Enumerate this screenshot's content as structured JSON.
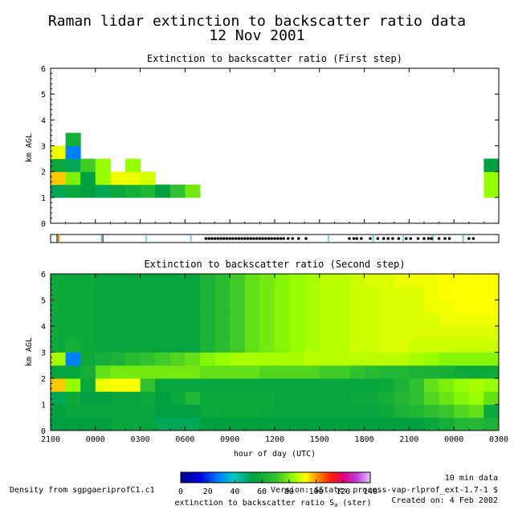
{
  "figure": {
    "title": "Raman lidar extinction to backscatter ratio data",
    "date": "12 Nov 2001",
    "footer_left": "Density from sgpgaeriprofC1.c1",
    "footer_resolution": "10 min data",
    "footer_version": "Version: $State: process-vap-rlprof_ext-1.7-1 $",
    "footer_created": "Created on:  4 Feb 2002",
    "colorbar": {
      "label": "extinction to backscatter ratio S",
      "label_sub": "a",
      "label_suffix": " (ster)",
      "ticks": [
        "0",
        "20",
        "40",
        "60",
        "80",
        "100",
        "120",
        "140"
      ],
      "range": [
        0,
        140
      ]
    },
    "colors": {
      "frame": "#000000",
      "strip_mark": "#00b4b4",
      "strip_warn": "#ff8c00"
    }
  },
  "chart_data": [
    {
      "type": "heatmap",
      "title": "Extinction to backscatter ratio (First step)",
      "ylabel": "km AGL",
      "xlabel": "",
      "x_range": [
        0,
        30
      ],
      "y_range": [
        0,
        6
      ],
      "yticks": [
        "0",
        "1",
        "2",
        "3",
        "4",
        "5",
        "6"
      ],
      "cell_width_hours": 1,
      "cell_height_km": 0.5,
      "cells": [
        {
          "x": 0,
          "y": 1.0,
          "v": 50
        },
        {
          "x": 0,
          "y": 1.5,
          "v": 95
        },
        {
          "x": 0,
          "y": 2.0,
          "v": 55
        },
        {
          "x": 0,
          "y": 2.5,
          "v": 88
        },
        {
          "x": 1,
          "y": 1.0,
          "v": 55
        },
        {
          "x": 1,
          "y": 1.5,
          "v": 75
        },
        {
          "x": 1,
          "y": 2.0,
          "v": 50
        },
        {
          "x": 1,
          "y": 2.5,
          "v": 28
        },
        {
          "x": 1,
          "y": 3.0,
          "v": 58
        },
        {
          "x": 2,
          "y": 1.0,
          "v": 52
        },
        {
          "x": 2,
          "y": 1.5,
          "v": 52
        },
        {
          "x": 2,
          "y": 2.0,
          "v": 68
        },
        {
          "x": 3,
          "y": 1.0,
          "v": 50
        },
        {
          "x": 3,
          "y": 1.5,
          "v": 78
        },
        {
          "x": 3,
          "y": 2.0,
          "v": 78
        },
        {
          "x": 4,
          "y": 1.0,
          "v": 55
        },
        {
          "x": 4,
          "y": 1.5,
          "v": 88
        },
        {
          "x": 5,
          "y": 1.0,
          "v": 58
        },
        {
          "x": 5,
          "y": 1.5,
          "v": 88
        },
        {
          "x": 5,
          "y": 2.0,
          "v": 78
        },
        {
          "x": 6,
          "y": 1.0,
          "v": 62
        },
        {
          "x": 6,
          "y": 1.5,
          "v": 85
        },
        {
          "x": 7,
          "y": 1.0,
          "v": 52
        },
        {
          "x": 8,
          "y": 1.0,
          "v": 66
        },
        {
          "x": 9,
          "y": 1.0,
          "v": 74
        },
        {
          "x": 29,
          "y": 1.0,
          "v": 78
        },
        {
          "x": 29,
          "y": 1.5,
          "v": 78
        },
        {
          "x": 29,
          "y": 2.0,
          "v": 52
        }
      ],
      "status_strip": {
        "ticks": [
          0.5,
          3.4,
          6.4,
          9.4,
          18.6,
          21.6,
          23.6,
          25.6,
          27.6
        ],
        "warn_marks": [
          0.55
        ],
        "dots": [
          10.4,
          10.6,
          10.8,
          11.0,
          11.2,
          11.4,
          11.6,
          11.8,
          12.0,
          12.2,
          12.4,
          12.6,
          12.8,
          13.0,
          13.2,
          13.4,
          13.6,
          13.8,
          14.0,
          14.2,
          14.4,
          14.6,
          14.8,
          15.0,
          15.2,
          15.4,
          15.6,
          15.9,
          16.2,
          16.6,
          17.1,
          20.0,
          20.3,
          20.5,
          20.8,
          21.4,
          21.9,
          22.3,
          22.6,
          22.9,
          23.3,
          23.8,
          24.1,
          24.6,
          25.0,
          25.3,
          25.5,
          26.0,
          26.4,
          26.7,
          28.0,
          28.3
        ]
      }
    },
    {
      "type": "heatmap",
      "title": "Extinction to backscatter ratio (Second step)",
      "ylabel": "km AGL",
      "xlabel": "hour of day (UTC)",
      "x_range": [
        0,
        30
      ],
      "y_range": [
        0,
        6
      ],
      "xticks": [
        "2100",
        "0000",
        "0300",
        "0600",
        "0900",
        "1200",
        "1500",
        "1800",
        "2100",
        "0000",
        "0300"
      ],
      "yticks": [
        "0",
        "1",
        "2",
        "3",
        "4",
        "5",
        "6"
      ],
      "columns_hours": 30,
      "row_height_km": 0.5,
      "rows": [
        {
          "y": 0.0,
          "values": [
            52,
            52,
            52,
            52,
            54,
            54,
            54,
            50,
            50,
            50,
            52,
            52,
            52,
            52,
            52,
            52,
            52,
            52,
            52,
            52,
            52,
            52,
            52,
            52,
            52,
            55,
            58,
            62,
            62,
            60
          ]
        },
        {
          "y": 0.5,
          "values": [
            53,
            54,
            54,
            54,
            54,
            54,
            54,
            52,
            52,
            52,
            55,
            56,
            56,
            56,
            55,
            54,
            54,
            54,
            54,
            54,
            54,
            54,
            56,
            60,
            62,
            65,
            67,
            70,
            72,
            55
          ]
        },
        {
          "y": 1.0,
          "values": [
            50,
            56,
            52,
            52,
            54,
            54,
            56,
            52,
            55,
            62,
            56,
            56,
            56,
            56,
            56,
            54,
            54,
            54,
            54,
            54,
            55,
            55,
            58,
            62,
            66,
            70,
            73,
            76,
            78,
            72
          ]
        },
        {
          "y": 1.5,
          "values": [
            95,
            78,
            55,
            88,
            90,
            90,
            66,
            54,
            54,
            54,
            54,
            54,
            54,
            54,
            54,
            54,
            54,
            54,
            54,
            54,
            54,
            54,
            56,
            60,
            66,
            72,
            75,
            78,
            80,
            78
          ]
        },
        {
          "y": 2.0,
          "values": [
            54,
            54,
            58,
            72,
            74,
            74,
            74,
            74,
            74,
            74,
            72,
            72,
            72,
            72,
            70,
            70,
            70,
            70,
            68,
            68,
            66,
            64,
            62,
            62,
            60,
            60,
            58,
            56,
            56,
            56
          ]
        },
        {
          "y": 2.5,
          "values": [
            80,
            28,
            56,
            58,
            60,
            64,
            66,
            68,
            70,
            72,
            76,
            78,
            80,
            80,
            80,
            80,
            80,
            82,
            82,
            82,
            82,
            82,
            82,
            82,
            80,
            78,
            76,
            76,
            76,
            76
          ]
        },
        {
          "y": 3.0,
          "values": [
            56,
            58,
            56,
            54,
            54,
            54,
            54,
            54,
            54,
            54,
            60,
            64,
            68,
            72,
            74,
            76,
            78,
            80,
            82,
            82,
            84,
            84,
            86,
            86,
            84,
            84,
            84,
            84,
            84,
            84
          ]
        },
        {
          "y": 3.5,
          "values": [
            56,
            56,
            56,
            54,
            54,
            54,
            54,
            54,
            54,
            54,
            60,
            64,
            68,
            72,
            74,
            76,
            78,
            80,
            82,
            82,
            84,
            84,
            86,
            86,
            86,
            86,
            86,
            86,
            86,
            86
          ]
        },
        {
          "y": 4.0,
          "values": [
            56,
            56,
            56,
            54,
            54,
            54,
            54,
            54,
            54,
            54,
            60,
            64,
            68,
            72,
            74,
            76,
            78,
            80,
            82,
            82,
            84,
            84,
            86,
            86,
            86,
            86,
            88,
            88,
            88,
            88
          ]
        },
        {
          "y": 4.5,
          "values": [
            56,
            56,
            56,
            54,
            54,
            54,
            54,
            54,
            54,
            54,
            60,
            64,
            68,
            72,
            74,
            76,
            78,
            80,
            82,
            82,
            84,
            84,
            86,
            86,
            86,
            88,
            88,
            90,
            90,
            90
          ]
        },
        {
          "y": 5.0,
          "values": [
            56,
            56,
            56,
            54,
            54,
            54,
            54,
            54,
            54,
            54,
            60,
            64,
            68,
            72,
            74,
            76,
            78,
            80,
            82,
            82,
            84,
            84,
            86,
            86,
            86,
            88,
            90,
            90,
            90,
            90
          ]
        },
        {
          "y": 5.5,
          "values": [
            56,
            56,
            56,
            54,
            54,
            54,
            54,
            54,
            54,
            54,
            60,
            64,
            68,
            72,
            74,
            76,
            78,
            80,
            82,
            82,
            84,
            86,
            86,
            88,
            88,
            88,
            90,
            90,
            90,
            90
          ]
        }
      ]
    }
  ]
}
